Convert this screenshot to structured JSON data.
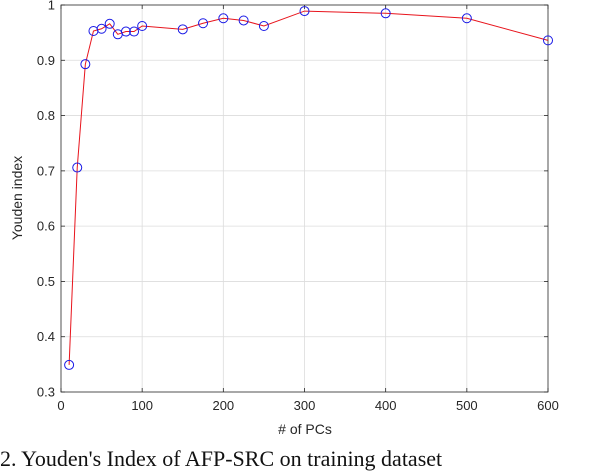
{
  "chart_data": {
    "type": "line",
    "xlabel": "# of PCs",
    "ylabel": "Youden index",
    "xlim": [
      0,
      600
    ],
    "ylim": [
      0.3,
      1.0
    ],
    "xticks": [
      0,
      100,
      200,
      300,
      400,
      500,
      600
    ],
    "yticks": [
      0.3,
      0.4,
      0.5,
      0.6,
      0.7,
      0.8,
      0.9,
      1.0
    ],
    "ytick_labels": [
      "0.3",
      "0.4",
      "0.5",
      "0.6",
      "0.7",
      "0.8",
      "0.9",
      "1"
    ],
    "grid": true,
    "series": [
      {
        "line_color": "#e8141c",
        "marker": "circle",
        "marker_color": "#1a1ae6",
        "x": [
          10,
          20,
          30,
          40,
          50,
          60,
          70,
          80,
          90,
          100,
          150,
          175,
          200,
          225,
          250,
          300,
          400,
          500,
          600
        ],
        "y": [
          0.349,
          0.706,
          0.893,
          0.953,
          0.957,
          0.966,
          0.947,
          0.952,
          0.952,
          0.962,
          0.956,
          0.967,
          0.976,
          0.972,
          0.962,
          0.989,
          0.985,
          0.976,
          0.936
        ]
      }
    ]
  },
  "caption": "2. Youden's Index of AFP-SRC on training dataset"
}
